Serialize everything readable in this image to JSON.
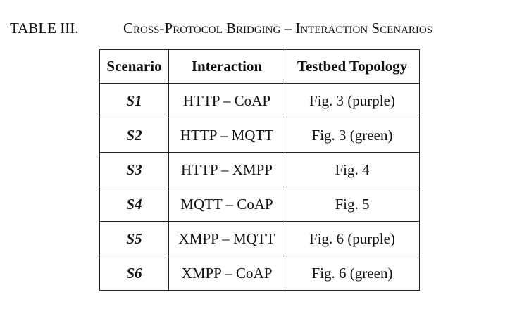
{
  "caption": {
    "label": "TABLE III.",
    "title": "Cross-Protocol Bridging – Interaction Scenarios"
  },
  "table": {
    "headers": [
      "Scenario",
      "Interaction",
      "Testbed Topology"
    ],
    "rows": [
      [
        "S1",
        "HTTP – CoAP",
        "Fig. 3 (purple)"
      ],
      [
        "S2",
        "HTTP – MQTT",
        "Fig. 3 (green)"
      ],
      [
        "S3",
        "HTTP – XMPP",
        "Fig. 4"
      ],
      [
        "S4",
        "MQTT – CoAP",
        "Fig. 5"
      ],
      [
        "S5",
        "XMPP – MQTT",
        "Fig. 6 (purple)"
      ],
      [
        "S6",
        "XMPP – CoAP",
        "Fig. 6 (green)"
      ]
    ]
  }
}
